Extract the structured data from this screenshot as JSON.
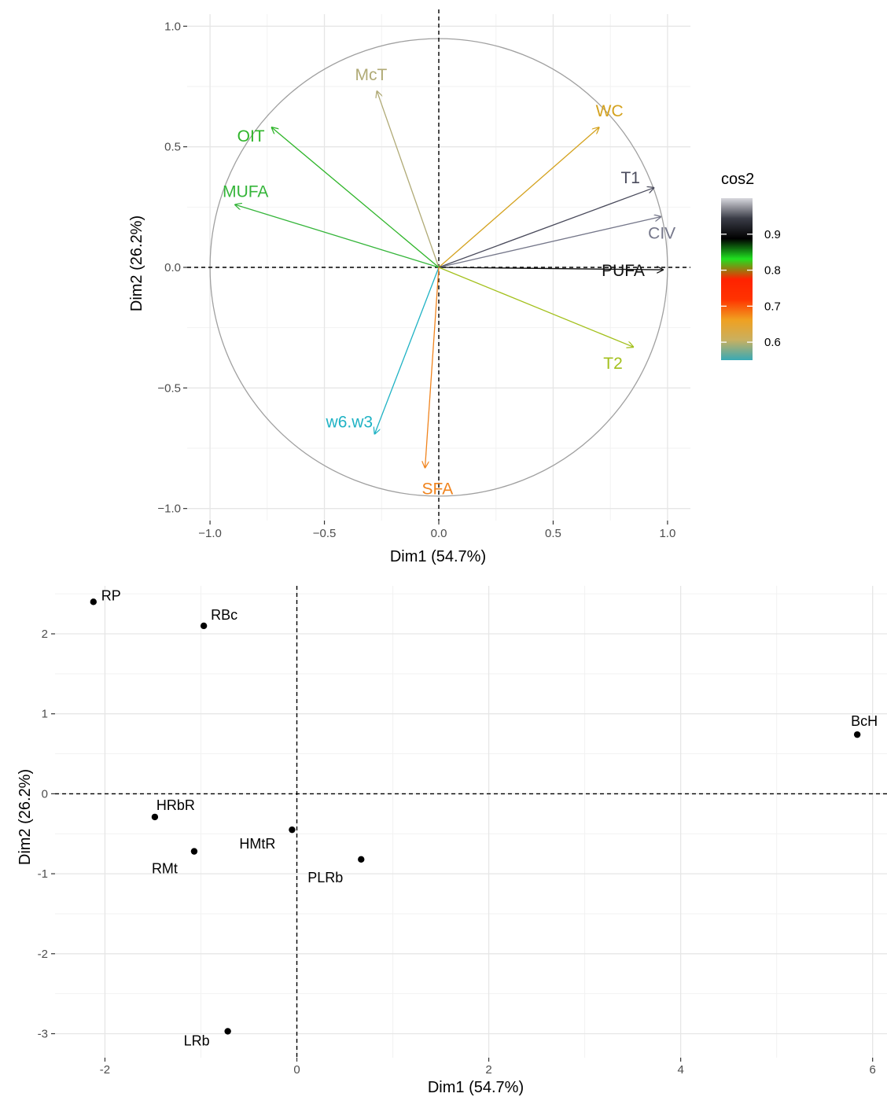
{
  "chart_data": [
    {
      "type": "scatter",
      "subtype": "pca-variable-correlation-circle",
      "xlabel": "Dim1 (54.7%)",
      "ylabel": "Dim2 (26.2%)",
      "xlim": [
        -1.1,
        1.1
      ],
      "ylim": [
        -1.05,
        1.05
      ],
      "x_ticks": [
        -1.0,
        -0.5,
        0.0,
        0.5,
        1.0
      ],
      "x_tick_labels": [
        "−1.0",
        "−0.5",
        "0.0",
        "0.5",
        "1.0"
      ],
      "y_ticks": [
        -1.0,
        -0.5,
        0.0,
        0.5,
        1.0
      ],
      "y_tick_labels": [
        "−1.0",
        "−0.5",
        "0.0",
        "0.5",
        "1.0"
      ],
      "grid": true,
      "unit_circle": true,
      "variables": [
        {
          "name": "McT",
          "x": -0.27,
          "y": 0.73,
          "color": "#b0aa76"
        },
        {
          "name": "WC",
          "x": 0.7,
          "y": 0.58,
          "color": "#d4a21e"
        },
        {
          "name": "OIT",
          "x": -0.73,
          "y": 0.58,
          "color": "#2fb52a"
        },
        {
          "name": "T1",
          "x": 0.94,
          "y": 0.33,
          "color": "#4a4b5c"
        },
        {
          "name": "MUFA",
          "x": -0.89,
          "y": 0.26,
          "color": "#35b53a"
        },
        {
          "name": "CIV",
          "x": 0.97,
          "y": 0.21,
          "color": "#75778a"
        },
        {
          "name": "PUFA",
          "x": 0.98,
          "y": -0.01,
          "color": "#111111"
        },
        {
          "name": "T2",
          "x": 0.85,
          "y": -0.33,
          "color": "#a3c01c"
        },
        {
          "name": "w6.w3",
          "x": -0.28,
          "y": -0.69,
          "color": "#1fb2c4"
        },
        {
          "name": "SFA",
          "x": -0.06,
          "y": -0.83,
          "color": "#f0841e"
        }
      ],
      "legend": {
        "title": "cos2",
        "placement": "right",
        "tick_labels": [
          "0.9",
          "0.8",
          "0.7",
          "0.6"
        ],
        "tick_values": [
          0.9,
          0.8,
          0.7,
          0.6
        ],
        "range": [
          0.55,
          1.0
        ],
        "gradient": [
          "#39a9b5",
          "#c9b060",
          "#f0a020",
          "#ff3300",
          "#ff2200",
          "#20e020",
          "#000000",
          "#3a3c47",
          "#d8d8de"
        ]
      }
    },
    {
      "type": "scatter",
      "subtype": "pca-individuals",
      "xlabel": "Dim1 (54.7%)",
      "ylabel": "Dim2 (26.2%)",
      "xlim": [
        -2.52,
        6.15
      ],
      "ylim": [
        -3.3,
        2.6
      ],
      "x_ticks": [
        -2,
        0,
        2,
        4,
        6
      ],
      "x_tick_labels": [
        "-2",
        "0",
        "2",
        "4",
        "6"
      ],
      "y_ticks": [
        -3,
        -2,
        -1,
        0,
        1,
        2
      ],
      "y_tick_labels": [
        "-3",
        "-2",
        "-1",
        "0",
        "1",
        "2"
      ],
      "grid": true,
      "points": [
        {
          "name": "RP",
          "x": -2.12,
          "y": 2.4
        },
        {
          "name": "RBc",
          "x": -0.97,
          "y": 2.1
        },
        {
          "name": "BcH",
          "x": 5.84,
          "y": 0.74
        },
        {
          "name": "HRbR",
          "x": -1.48,
          "y": -0.29
        },
        {
          "name": "RMt",
          "x": -1.07,
          "y": -0.72
        },
        {
          "name": "HMtR",
          "x": -0.05,
          "y": -0.45
        },
        {
          "name": "PLRb",
          "x": 0.67,
          "y": -0.82
        },
        {
          "name": "LRb",
          "x": -0.72,
          "y": -2.97
        }
      ]
    }
  ]
}
